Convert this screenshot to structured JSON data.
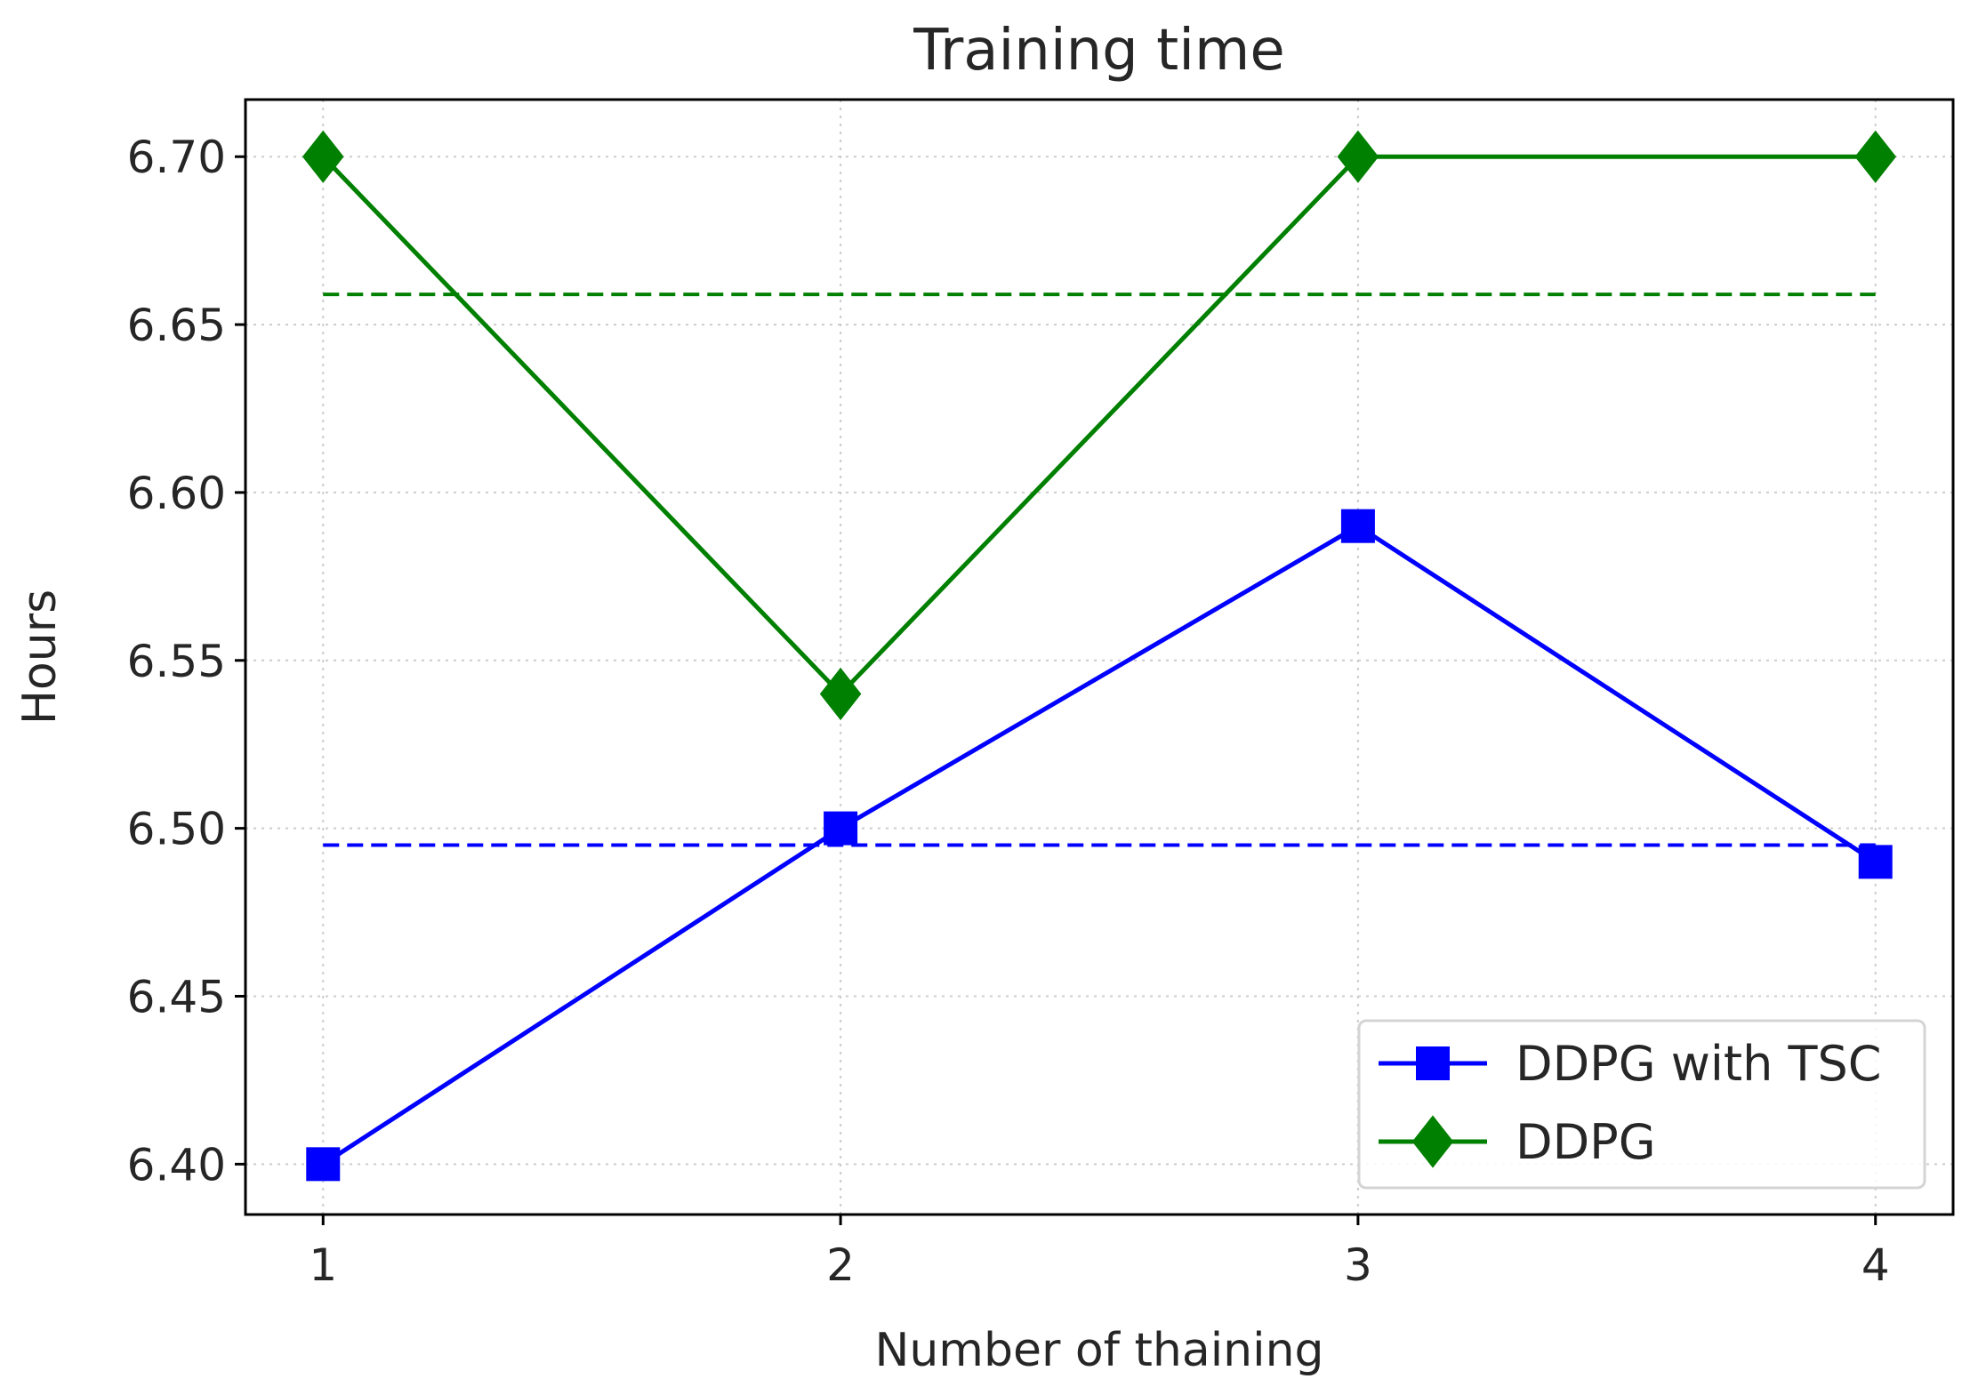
{
  "chart_data": {
    "type": "line",
    "title": "Training time",
    "xlabel": "Number of thaining",
    "ylabel": "Hours",
    "x": [
      1,
      2,
      3,
      4
    ],
    "xlim": [
      0.85,
      4.15
    ],
    "ylim": [
      6.385,
      6.717
    ],
    "xticks": [
      1,
      2,
      3,
      4
    ],
    "yticks": [
      6.4,
      6.45,
      6.5,
      6.55,
      6.6,
      6.65,
      6.7
    ],
    "ytick_labels": [
      "6.40",
      "6.45",
      "6.50",
      "6.55",
      "6.60",
      "6.65",
      "6.70"
    ],
    "grid": true,
    "legend_position": "bottom-right",
    "series": [
      {
        "name": "DDPG with TSC",
        "values": [
          6.4,
          6.5,
          6.59,
          6.49
        ],
        "color": "#0000ff",
        "marker": "square"
      },
      {
        "name": "DDPG",
        "values": [
          6.7,
          6.54,
          6.7,
          6.7
        ],
        "color": "#008000",
        "marker": "diamond"
      }
    ],
    "mean_lines": [
      {
        "series": "DDPG with TSC",
        "value": 6.495,
        "color": "#0000ff",
        "style": "dashed"
      },
      {
        "series": "DDPG",
        "value": 6.659,
        "color": "#008000",
        "style": "dashed"
      }
    ]
  }
}
